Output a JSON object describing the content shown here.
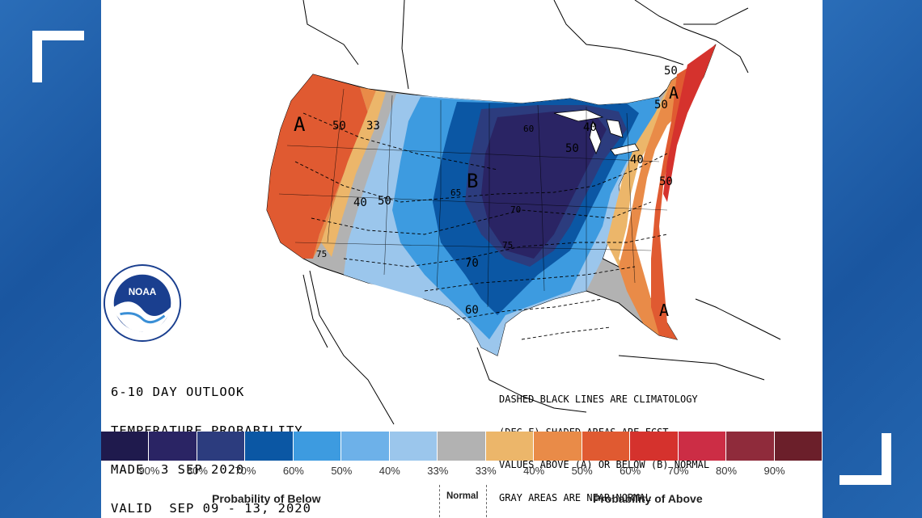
{
  "map": {
    "title_lines": [
      "6-10 DAY OUTLOOK",
      "TEMPERATURE PROBABILITY",
      "MADE  3 SEP 2020",
      "VALID  SEP 09 - 13, 2020"
    ],
    "note_lines": [
      "DASHED BLACK LINES ARE CLIMATOLOGY",
      "(DEG F) SHADED AREAS ARE FCST",
      "VALUES ABOVE (A) OR BELOW (B) NORMAL",
      "GRAY AREAS ARE NEAR-NORMAL"
    ],
    "region_letters": [
      "A",
      "B",
      "A",
      "A"
    ],
    "contour_labels": [
      "50",
      "33",
      "40",
      "50",
      "60",
      "40",
      "50",
      "65",
      "70",
      "75",
      "70",
      "60",
      "40",
      "50",
      "50",
      "50",
      "75"
    ],
    "logo_text": "NOAA"
  },
  "legend": {
    "colors": [
      "#1f1a4d",
      "#2a2464",
      "#2c3c7e",
      "#0b57a4",
      "#3d9be0",
      "#6db1e9",
      "#9bc6ec",
      "#b2b2b2",
      "#ecb66a",
      "#e98b48",
      "#e05a31",
      "#d5322d",
      "#cc2d45",
      "#8f2b3b",
      "#6b1f2a"
    ],
    "labels": [
      "90%",
      "80%",
      "70%",
      "60%",
      "50%",
      "40%",
      "33%",
      "33%",
      "40%",
      "50%",
      "60%",
      "70%",
      "80%",
      "90%"
    ],
    "below_label": "Probability of Below",
    "normal_label": "Normal",
    "above_label": "Probability of Above"
  }
}
